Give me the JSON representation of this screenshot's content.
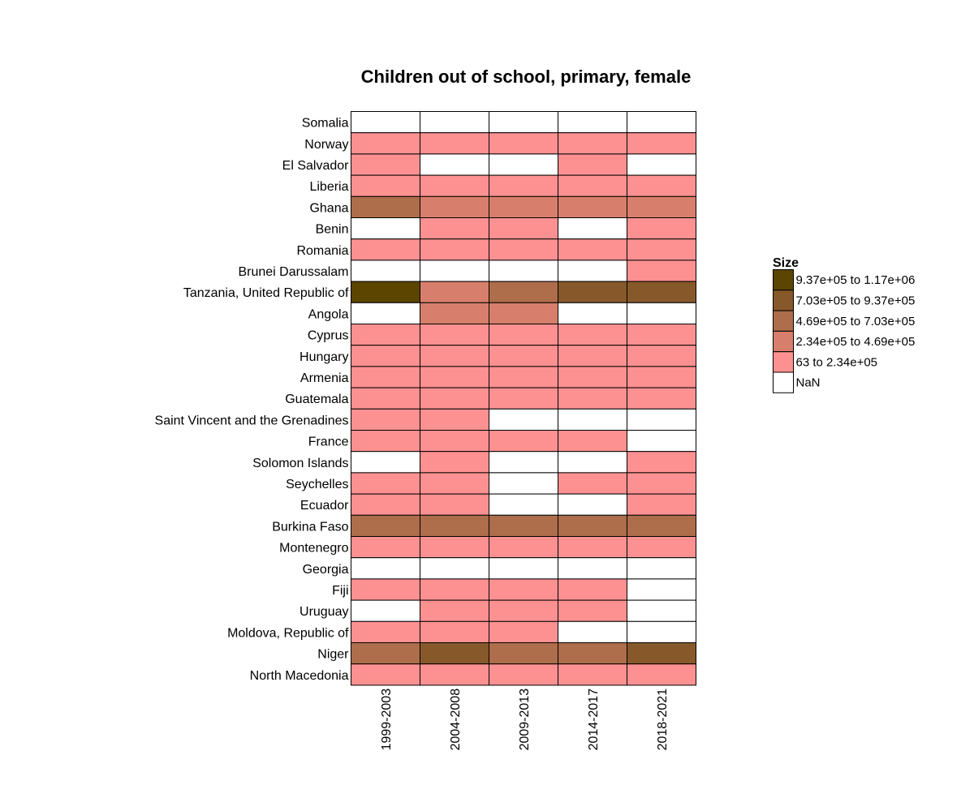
{
  "chart_data": {
    "type": "heatmap",
    "title": "Children out of school, primary, female",
    "columns": [
      "1999-2003",
      "2004-2008",
      "2009-2013",
      "2014-2017",
      "2018-2021"
    ],
    "rows": [
      "Somalia",
      "Norway",
      "El Salvador",
      "Liberia",
      "Ghana",
      "Benin",
      "Romania",
      "Brunei Darussalam",
      "Tanzania, United Republic of",
      "Angola",
      "Cyprus",
      "Hungary",
      "Armenia",
      "Guatemala",
      "Saint Vincent and the Grenadines",
      "France",
      "Solomon Islands",
      "Seychelles",
      "Ecuador",
      "Burkina Faso",
      "Montenegro",
      "Georgia",
      "Fiji",
      "Uruguay",
      "Moldova, Republic of",
      "Niger",
      "North Macedonia"
    ],
    "cell_bins": [
      [
        5,
        5,
        5,
        5,
        5
      ],
      [
        4,
        4,
        4,
        4,
        4
      ],
      [
        4,
        5,
        5,
        4,
        5
      ],
      [
        4,
        4,
        4,
        4,
        4
      ],
      [
        2,
        3,
        3,
        3,
        3
      ],
      [
        5,
        4,
        4,
        5,
        4
      ],
      [
        4,
        4,
        4,
        4,
        4
      ],
      [
        5,
        5,
        5,
        5,
        4
      ],
      [
        0,
        3,
        2,
        1,
        1
      ],
      [
        5,
        3,
        3,
        5,
        5
      ],
      [
        4,
        4,
        4,
        4,
        4
      ],
      [
        4,
        4,
        4,
        4,
        4
      ],
      [
        4,
        4,
        4,
        4,
        4
      ],
      [
        4,
        4,
        4,
        4,
        4
      ],
      [
        4,
        4,
        5,
        5,
        5
      ],
      [
        4,
        4,
        4,
        4,
        5
      ],
      [
        5,
        4,
        5,
        5,
        4
      ],
      [
        4,
        4,
        5,
        4,
        4
      ],
      [
        4,
        4,
        5,
        5,
        4
      ],
      [
        2,
        2,
        2,
        2,
        2
      ],
      [
        4,
        4,
        4,
        4,
        4
      ],
      [
        5,
        5,
        5,
        5,
        5
      ],
      [
        4,
        4,
        4,
        4,
        5
      ],
      [
        5,
        4,
        4,
        4,
        5
      ],
      [
        4,
        4,
        4,
        5,
        5
      ],
      [
        2,
        1,
        2,
        2,
        1
      ],
      [
        4,
        4,
        4,
        4,
        4
      ]
    ],
    "legend": {
      "title": "Size",
      "placement": "right",
      "bins": [
        {
          "label": "9.37e+05 to 1.17e+06",
          "color": "#5b4500"
        },
        {
          "label": "7.03e+05 to 9.37e+05",
          "color": "#87592a"
        },
        {
          "label": "4.69e+05 to 7.03e+05",
          "color": "#ae6d4b"
        },
        {
          "label": "2.34e+05 to 4.69e+05",
          "color": "#d77f6c"
        },
        {
          "label": "63 to 2.34e+05",
          "color": "#fd9191"
        },
        {
          "label": "NaN",
          "color": "#ffffff"
        }
      ]
    }
  }
}
